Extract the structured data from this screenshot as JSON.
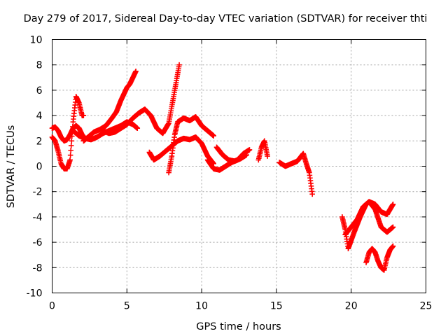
{
  "chart_data": {
    "type": "scatter",
    "title": "Day 279 of 2017, Sidereal Day-to-day VTEC variation (SDTVAR) for receiver thti",
    "xlabel": "GPS time / hours",
    "ylabel": "SDTVAR / TECUs",
    "xlim": [
      0,
      25
    ],
    "ylim": [
      -10,
      10
    ],
    "xticks": [
      0,
      5,
      10,
      15,
      20,
      25
    ],
    "yticks": [
      -10,
      -8,
      -6,
      -4,
      -2,
      0,
      2,
      4,
      6,
      8,
      10
    ],
    "grid": true,
    "marker": "+",
    "color": "#ff0000",
    "series": [
      {
        "x": [
          0.0,
          0.2,
          0.4,
          0.6,
          0.8,
          1.0,
          1.2,
          1.4,
          1.6,
          1.8,
          2.0,
          2.1
        ],
        "y": [
          2.3,
          2.0,
          1.2,
          0.2,
          -0.2,
          -0.2,
          0.5,
          3.5,
          5.5,
          5.0,
          4.0,
          4.0
        ]
      },
      {
        "x": [
          0.0,
          0.2,
          0.4,
          0.6,
          0.8,
          1.0,
          1.2,
          1.4,
          1.6,
          1.8,
          2.0,
          2.2
        ],
        "y": [
          3.0,
          3.1,
          2.8,
          2.3,
          2.0,
          2.1,
          2.5,
          3.0,
          3.2,
          3.0,
          2.5,
          2.2
        ]
      },
      {
        "x": [
          1.4,
          1.8,
          2.2,
          2.6,
          3.0,
          3.4,
          3.8,
          4.2,
          4.6,
          5.0,
          5.4,
          5.7
        ],
        "y": [
          2.8,
          2.4,
          2.2,
          2.1,
          2.3,
          2.6,
          2.8,
          3.0,
          3.2,
          3.5,
          3.3,
          3.0
        ]
      },
      {
        "x": [
          2.1,
          2.4,
          2.8,
          3.2,
          3.6,
          4.0,
          4.3,
          4.6,
          5.0,
          5.2,
          5.4,
          5.6
        ],
        "y": [
          2.0,
          2.3,
          2.7,
          2.9,
          3.2,
          3.8,
          4.3,
          5.2,
          6.2,
          6.5,
          7.0,
          7.5
        ]
      },
      {
        "x": [
          3.4,
          3.8,
          4.2,
          4.6,
          5.0,
          5.4,
          5.8,
          6.2,
          6.6,
          7.0,
          7.4,
          7.8,
          8.2,
          8.5
        ],
        "y": [
          2.8,
          2.6,
          2.7,
          3.0,
          3.3,
          3.8,
          4.2,
          4.5,
          4.0,
          3.0,
          2.6,
          3.4,
          6.0,
          8.0
        ]
      },
      {
        "x": [
          6.5,
          6.8,
          7.2,
          7.6,
          8.0,
          8.4,
          8.8,
          9.2,
          9.6,
          10.0,
          10.4,
          10.8
        ],
        "y": [
          1.1,
          0.5,
          0.8,
          1.2,
          1.6,
          2.0,
          2.2,
          2.1,
          2.3,
          1.8,
          0.8,
          0.2
        ]
      },
      {
        "x": [
          7.8,
          8.0,
          8.2,
          8.4,
          8.8,
          9.2,
          9.6,
          10.0,
          10.4,
          10.8
        ],
        "y": [
          -0.5,
          0.8,
          2.5,
          3.5,
          3.8,
          3.6,
          3.9,
          3.2,
          2.8,
          2.4
        ]
      },
      {
        "x": [
          10.4,
          10.8,
          11.2,
          11.6,
          12.0,
          12.4,
          12.8,
          13.2
        ],
        "y": [
          0.5,
          -0.2,
          -0.3,
          0.0,
          0.3,
          0.5,
          1.0,
          1.3
        ]
      },
      {
        "x": [
          11.0,
          11.4,
          11.8,
          12.2,
          12.6,
          13.0
        ],
        "y": [
          1.5,
          0.9,
          0.5,
          0.4,
          0.6,
          0.9
        ]
      },
      {
        "x": [
          13.8,
          14.0,
          14.2,
          14.4
        ],
        "y": [
          0.5,
          1.5,
          2.0,
          0.8
        ]
      },
      {
        "x": [
          15.2,
          15.6,
          16.0,
          16.4,
          16.8,
          17.0,
          17.2,
          17.4
        ],
        "y": [
          0.3,
          0.0,
          0.2,
          0.4,
          1.0,
          0.2,
          -0.5,
          -2.2
        ]
      },
      {
        "x": [
          19.4,
          19.6,
          19.8,
          20.2,
          20.6,
          21.0,
          21.2,
          21.6,
          22.0,
          22.4,
          22.8
        ],
        "y": [
          -4.0,
          -5.0,
          -6.5,
          -5.2,
          -4.0,
          -3.0,
          -2.8,
          -3.4,
          -4.8,
          -5.2,
          -4.8
        ]
      },
      {
        "x": [
          19.6,
          20.0,
          20.4,
          20.8,
          21.2,
          21.6,
          22.0,
          22.4,
          22.8
        ],
        "y": [
          -5.4,
          -4.8,
          -4.2,
          -3.2,
          -2.8,
          -3.0,
          -3.6,
          -3.8,
          -3.0
        ]
      },
      {
        "x": [
          21.0,
          21.2,
          21.4,
          21.6,
          21.8,
          22.0,
          22.2,
          22.4,
          22.6,
          22.8
        ],
        "y": [
          -7.6,
          -6.8,
          -6.5,
          -6.8,
          -7.5,
          -8.0,
          -8.2,
          -7.2,
          -6.6,
          -6.3
        ]
      }
    ]
  }
}
